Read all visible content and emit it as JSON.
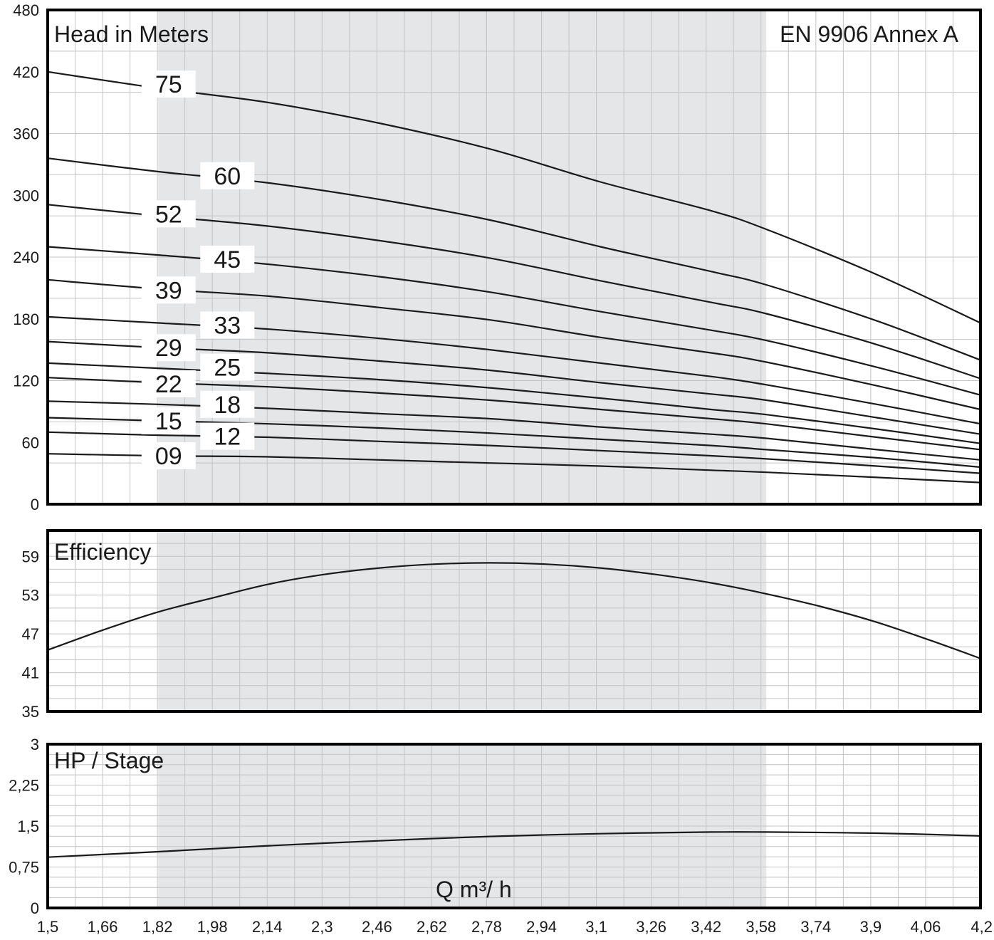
{
  "chart_data": {
    "x_ticks": [
      "1,5",
      "1,66",
      "1,82",
      "1,98",
      "2,14",
      "2,3",
      "2,46",
      "2,62",
      "2,78",
      "2,94",
      "3,1",
      "3,26",
      "3,42",
      "3,58",
      "3,74",
      "3,9",
      "4,06",
      "4,2"
    ],
    "xlim": [
      1.5,
      4.2
    ],
    "xlabel": "Q m³/ h",
    "recommended_range": [
      1.82,
      3.58
    ],
    "colors": {
      "shade": "#e5e6e8",
      "grid": "#c4c4c4",
      "curve": "#1a1a1a",
      "frame": "#000000"
    },
    "charts": [
      {
        "type": "line",
        "title": "Head in Meters",
        "annotation": "EN 9906 Annex A",
        "ylim": [
          0,
          480
        ],
        "y_ticks": [
          "0",
          "60",
          "120",
          "180",
          "240",
          "300",
          "360",
          "420",
          "480"
        ],
        "x": [
          1.5,
          1.82,
          2.14,
          2.46,
          2.78,
          3.1,
          3.42,
          3.58,
          3.9,
          4.2
        ],
        "series": [
          {
            "name": "75",
            "values": [
              420,
              404,
              390,
              370,
              345,
              313,
              285,
              267,
              223,
              176
            ]
          },
          {
            "name": "60",
            "values": [
              336,
              323,
              312,
              296,
              276,
              250,
              226,
              213,
              178,
              140
            ]
          },
          {
            "name": "52",
            "values": [
              291,
              280,
              270,
              256,
              239,
              217,
              196,
              185,
              155,
              122
            ]
          },
          {
            "name": "45",
            "values": [
              250,
              242,
              233,
              221,
              206,
              187,
              169,
              159,
              133,
              106
            ]
          },
          {
            "name": "39",
            "values": [
              218,
              209,
              202,
              191,
              179,
              162,
              147,
              138,
              115,
              92
            ]
          },
          {
            "name": "33",
            "values": [
              182,
              176,
              170,
              161,
              150,
              137,
              124,
              116,
              97,
              78
            ]
          },
          {
            "name": "29",
            "values": [
              158,
              152,
              147,
              139,
              130,
              118,
              107,
              101,
              84,
              68
            ]
          },
          {
            "name": "25",
            "values": [
              137,
              132,
              127,
              121,
              113,
              103,
              92,
              87,
              73,
              59
            ]
          },
          {
            "name": "22",
            "values": [
              123,
              118,
              114,
              108,
              101,
              92,
              83,
              78,
              65,
              53
            ]
          },
          {
            "name": "18",
            "values": [
              100,
              97,
              93,
              88,
              83,
              75,
              68,
              64,
              53,
              43
            ]
          },
          {
            "name": "15",
            "values": [
              84,
              81,
              78,
              74,
              69,
              63,
              57,
              53,
              45,
              36
            ]
          },
          {
            "name": "12",
            "values": [
              70,
              67,
              65,
              61,
              57,
              52,
              47,
              44,
              37,
              30
            ]
          },
          {
            "name": "09",
            "values": [
              49,
              47,
              46,
              43,
              40,
              37,
              33,
              31,
              26,
              21
            ]
          }
        ],
        "label_positions": [
          {
            "label": "75",
            "x": 1.85,
            "y": 408
          },
          {
            "label": "60",
            "x": 2.02,
            "y": 319
          },
          {
            "label": "52",
            "x": 1.85,
            "y": 282
          },
          {
            "label": "45",
            "x": 2.02,
            "y": 238
          },
          {
            "label": "39",
            "x": 1.85,
            "y": 208
          },
          {
            "label": "33",
            "x": 2.02,
            "y": 174
          },
          {
            "label": "29",
            "x": 1.85,
            "y": 152
          },
          {
            "label": "25",
            "x": 2.02,
            "y": 133
          },
          {
            "label": "22",
            "x": 1.85,
            "y": 117
          },
          {
            "label": "18",
            "x": 2.02,
            "y": 97
          },
          {
            "label": "15",
            "x": 1.85,
            "y": 81
          },
          {
            "label": "12",
            "x": 2.02,
            "y": 66
          },
          {
            "label": "09",
            "x": 1.85,
            "y": 47
          }
        ]
      },
      {
        "type": "line",
        "title": "Efficiency",
        "ylim": [
          35,
          63
        ],
        "y_ticks": [
          "35",
          "41",
          "47",
          "53",
          "59"
        ],
        "y_tick_values": [
          35,
          41,
          47,
          53,
          59
        ],
        "x": [
          1.5,
          1.66,
          1.82,
          1.98,
          2.14,
          2.3,
          2.46,
          2.62,
          2.78,
          2.94,
          3.1,
          3.26,
          3.42,
          3.58,
          3.74,
          3.9,
          4.06,
          4.2
        ],
        "series": [
          {
            "values": [
              44.5,
              47.6,
              50.4,
              52.6,
              54.7,
              56.2,
              57.2,
              57.8,
              58.0,
              57.8,
              57.2,
              56.2,
              54.9,
              53.2,
              51.2,
              48.8,
              45.9,
              43.2
            ]
          }
        ]
      },
      {
        "type": "line",
        "title": "HP / Stage",
        "ylim": [
          0,
          3
        ],
        "y_ticks": [
          "0",
          "0,75",
          "1,5",
          "2,25",
          "3"
        ],
        "y_tick_values": [
          0,
          0.75,
          1.5,
          2.25,
          3
        ],
        "x": [
          1.5,
          1.82,
          2.14,
          2.46,
          2.78,
          3.1,
          3.42,
          3.58,
          3.9,
          4.2
        ],
        "series": [
          {
            "values": [
              0.93,
              1.03,
              1.14,
              1.23,
              1.31,
              1.36,
              1.39,
              1.39,
              1.37,
              1.32
            ]
          }
        ]
      }
    ]
  }
}
